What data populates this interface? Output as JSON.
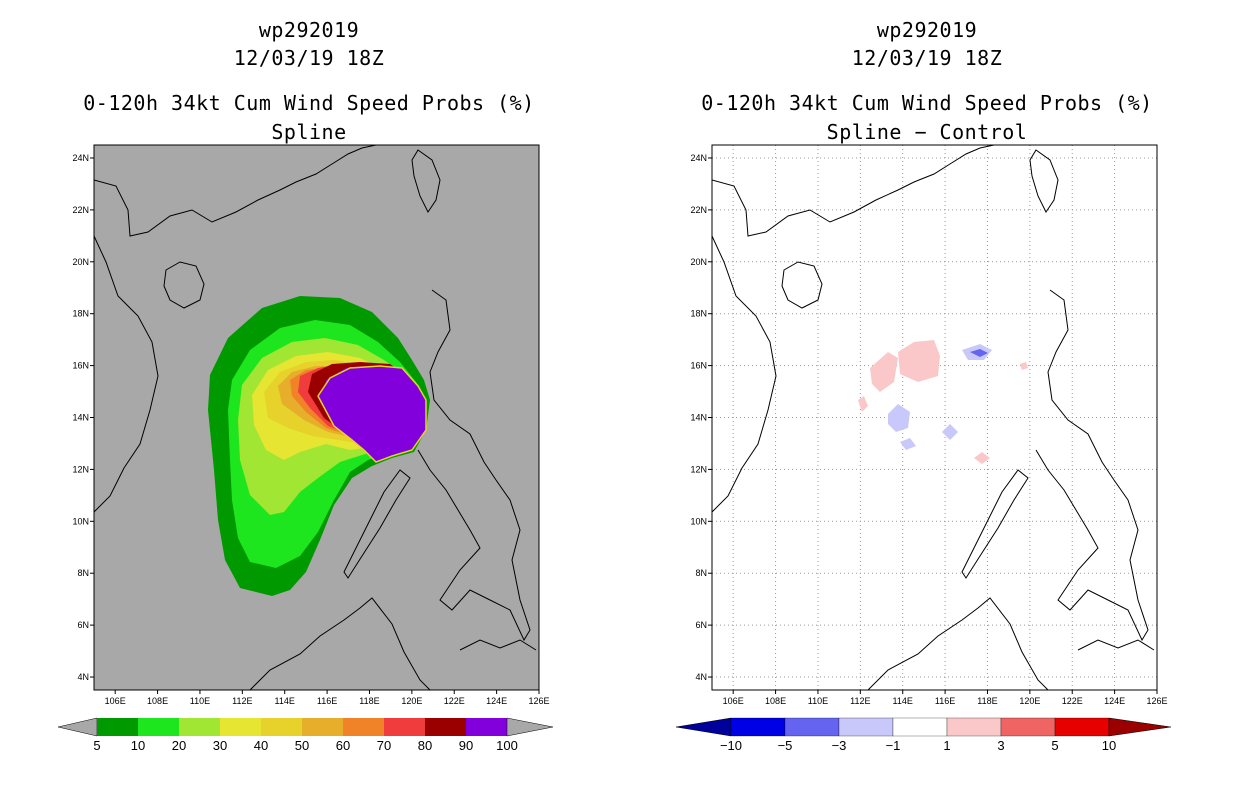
{
  "panels": [
    {
      "storm_id": "wp292019",
      "datetime": "12/03/19 18Z",
      "product": "0-120h 34kt Cum Wind Speed Probs (%)",
      "method": "Spline",
      "background": "#a8a8a8",
      "colorbar": {
        "labels": [
          "5",
          "10",
          "20",
          "30",
          "40",
          "50",
          "60",
          "70",
          "80",
          "90",
          "100"
        ],
        "colors": [
          "#009a00",
          "#1ee61e",
          "#a0e632",
          "#e6e632",
          "#e6d22a",
          "#e6ae2a",
          "#f08228",
          "#f03c3c",
          "#9a0000",
          "#8200dc"
        ],
        "end_arrow_color": "#a8a8a8"
      }
    },
    {
      "storm_id": "wp292019",
      "datetime": "12/03/19 18Z",
      "product": "0-120h 34kt Cum Wind Speed Probs (%)",
      "method": "Spline − Control",
      "background": "#ffffff",
      "colorbar": {
        "labels": [
          "−10",
          "−5",
          "−3",
          "−1",
          "1",
          "3",
          "5",
          "10"
        ],
        "colors": [
          "#0000e6",
          "#6464f0",
          "#c8c8fa",
          "#ffffff",
          "#fac8c8",
          "#f06464",
          "#e60000"
        ],
        "left_arrow_color": "#00009a",
        "right_arrow_color": "#9a0000"
      }
    }
  ],
  "axes": {
    "lon_labels": [
      "106E",
      "108E",
      "110E",
      "112E",
      "114E",
      "116E",
      "118E",
      "120E",
      "122E",
      "124E",
      "126E"
    ],
    "lat_labels": [
      "24N",
      "22N",
      "20N",
      "18N",
      "16N",
      "14N",
      "12N",
      "10N",
      "8N",
      "6N",
      "4N"
    ],
    "lon_range": [
      105,
      126
    ],
    "lat_range": [
      3.5,
      24.5
    ]
  }
}
